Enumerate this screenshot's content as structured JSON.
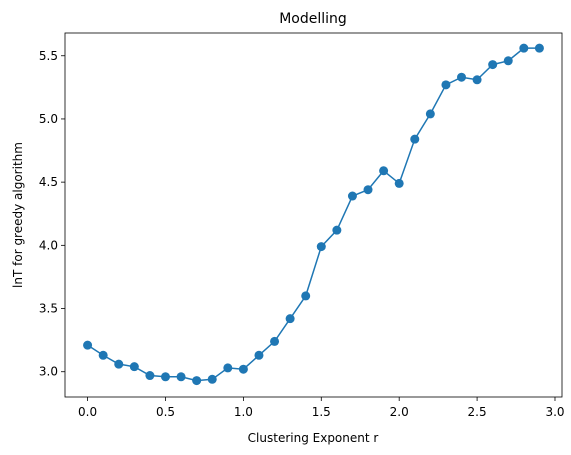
{
  "chart_data": {
    "type": "line",
    "title": "Modelling",
    "xlabel": "Clustering Exponent r",
    "ylabel": "lnT for greedy algorithm",
    "xlim": [
      -0.145,
      3.045
    ],
    "ylim": [
      2.8,
      5.68
    ],
    "xticks": [
      "0.0",
      "0.5",
      "1.0",
      "1.5",
      "2.0",
      "2.5",
      "3.0"
    ],
    "yticks": [
      "3.0",
      "3.5",
      "4.0",
      "4.5",
      "5.0",
      "5.5"
    ],
    "grid": false,
    "series": [
      {
        "color": "#1f77b4",
        "marker": "circle",
        "x": [
          0.0,
          0.1,
          0.2,
          0.3,
          0.4,
          0.5,
          0.6,
          0.7,
          0.8,
          0.9,
          1.0,
          1.1,
          1.2,
          1.3,
          1.4,
          1.5,
          1.6,
          1.7,
          1.8,
          1.9,
          2.0,
          2.1,
          2.2,
          2.3,
          2.4,
          2.5,
          2.6,
          2.7,
          2.8,
          2.9
        ],
        "y": [
          3.21,
          3.13,
          3.06,
          3.04,
          2.97,
          2.96,
          2.96,
          2.93,
          2.94,
          3.03,
          3.02,
          3.13,
          3.24,
          3.42,
          3.6,
          3.99,
          4.12,
          4.39,
          4.44,
          4.59,
          4.49,
          4.84,
          5.04,
          5.27,
          5.33,
          5.31,
          5.43,
          5.46,
          5.56,
          5.56
        ]
      }
    ]
  }
}
